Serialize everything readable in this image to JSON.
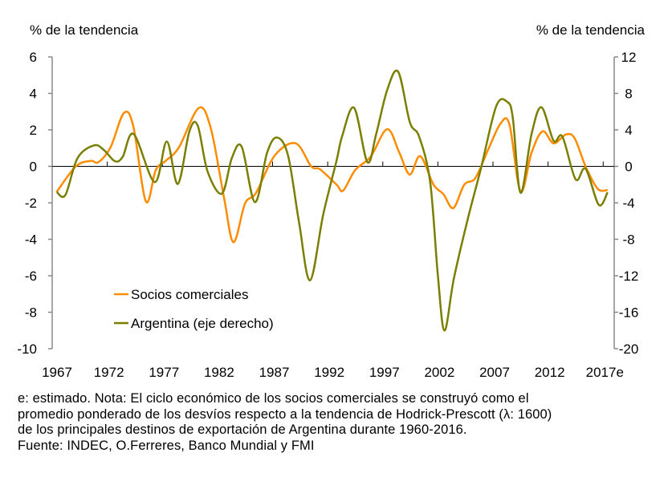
{
  "chart_data": {
    "type": "line",
    "left_axis_label": "% de la tendencia",
    "right_axis_label": "% de la tendencia",
    "left_ylim": [
      -10,
      6
    ],
    "left_ticks": [
      6,
      4,
      2,
      0,
      -2,
      -4,
      -6,
      -8,
      -10
    ],
    "right_ylim": [
      -20,
      12
    ],
    "right_ticks": [
      12,
      8,
      4,
      0,
      -4,
      -8,
      -12,
      -16,
      -20
    ],
    "xlim": [
      1967,
      2018
    ],
    "x_tick_labels": [
      "1967",
      "1972",
      "1977",
      "1982",
      "1987",
      "1992",
      "1997",
      "2002",
      "2007",
      "2012",
      "2017e"
    ],
    "grid": false,
    "legend_placement": "lower-left",
    "series": [
      {
        "name": "Socios comerciales",
        "axis": "left",
        "color": "#FF8C00",
        "x": [
          1967.4,
          1969.15,
          1970.5,
          1971.2,
          1972.3,
          1973.5,
          1974.36,
          1975.5,
          1976.4,
          1977.3,
          1978.5,
          1980.3,
          1981.4,
          1982.6,
          1983.45,
          1984.5,
          1985.5,
          1987.2,
          1989.1,
          1990.5,
          1991.3,
          1992.8,
          1993.4,
          1994.5,
          1995.9,
          1997.4,
          1998.5,
          1999.45,
          2000.4,
          2001.6,
          2002.5,
          2003.4,
          2004.4,
          2005.4,
          2006.6,
          2007.7,
          2008.5,
          2009.5,
          2010.5,
          2011.5,
          2012.5,
          2013.6,
          2014.4,
          2015.4,
          2016.5,
          2017.4
        ],
        "y": [
          -1.41,
          0,
          0.3,
          0.23,
          1.05,
          2.92,
          2.2,
          -1.92,
          -0.2,
          0.3,
          1.04,
          3.2,
          2.07,
          -1.74,
          -4.16,
          -2.04,
          -1.45,
          0.6,
          1.26,
          0,
          -0.16,
          -1.0,
          -1.33,
          -0.2,
          0.53,
          2.04,
          0.75,
          -0.45,
          0.56,
          -1.0,
          -1.52,
          -2.29,
          -1.0,
          -0.64,
          0.97,
          2.36,
          2.28,
          -1.38,
          0.75,
          1.92,
          1.26,
          1.74,
          1.55,
          0,
          -1.23,
          -1.3
        ]
      },
      {
        "name": "Argentina (eje derecho)",
        "axis": "right",
        "color": "#7A7F00",
        "x": [
          1967.4,
          1968.2,
          1969.3,
          1970.8,
          1971.7,
          1972.7,
          1973.4,
          1974.4,
          1976.3,
          1977.4,
          1978.4,
          1979.45,
          1980.2,
          1981.1,
          1982.4,
          1983.3,
          1984.2,
          1985.4,
          1986.5,
          1987.4,
          1988.4,
          1989.4,
          1990.4,
          1991.6,
          1992.8,
          1993.3,
          1994.4,
          1995.6,
          1996.4,
          1997.4,
          1998.4,
          1999.45,
          2000.3,
          2001.3,
          2002.0,
          2002.6,
          2003.45,
          2004.7,
          2005.9,
          2007.3,
          2008.3,
          2008.8,
          2009.5,
          2010.5,
          2011.4,
          2012.5,
          2013.3,
          2014.5,
          2015.4,
          2016.6,
          2017.4
        ],
        "y": [
          -2.81,
          -3.14,
          0.9,
          2.3,
          1.78,
          0.56,
          1.05,
          3.54,
          -1.73,
          2.72,
          -1.93,
          3.84,
          4.48,
          -0.56,
          -2.99,
          0.9,
          2.14,
          -3.93,
          1.49,
          3.16,
          1.2,
          -6.13,
          -12.5,
          -5.25,
          0.6,
          3.25,
          6.42,
          0.47,
          3.54,
          8.38,
          10.37,
          4.86,
          3.25,
          -1.73,
          -12.0,
          -18.0,
          -12.3,
          -5.83,
          -0.26,
          6.62,
          7.06,
          5.3,
          -2.9,
          3.54,
          6.48,
          2.81,
          3.25,
          -1.43,
          -0.26,
          -4.22,
          -2.84
        ]
      }
    ]
  },
  "footnote": {
    "lines": [
      "e: estimado. Nota: El ciclo económico de los socios comerciales se construyó como el",
      "promedio ponderado de los desvíos respecto a la tendencia de Hodrick-Prescott (λ: 1600)",
      "de los principales destinos de exportación de Argentina durante 1960-2016.",
      "Fuente: INDEC, O.Ferreres, Banco Mundial y FMI"
    ]
  }
}
